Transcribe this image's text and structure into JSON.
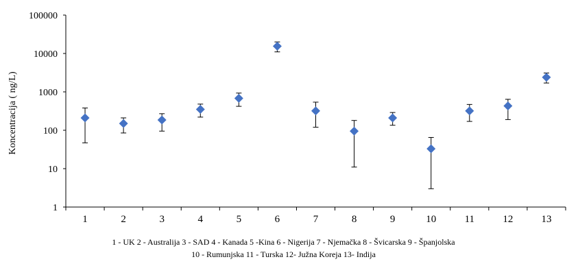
{
  "chart_data": {
    "type": "scatter",
    "title": "",
    "xlabel": "",
    "ylabel": "Koncentracija ( ng/L)",
    "y_scale": "log",
    "ylim": [
      1,
      100000
    ],
    "y_ticks": [
      1,
      10,
      100,
      1000,
      10000,
      100000
    ],
    "y_tick_labels": [
      "1",
      "10",
      "100",
      "1000",
      "10000",
      "100000"
    ],
    "categories": [
      "1",
      "2",
      "3",
      "4",
      "5",
      "6",
      "7",
      "8",
      "9",
      "10",
      "11",
      "12",
      "13"
    ],
    "series": [
      {
        "values": [
          210,
          150,
          185,
          350,
          680,
          15500,
          320,
          95,
          210,
          33,
          320,
          430,
          2400
        ],
        "err_low": [
          47,
          85,
          95,
          220,
          420,
          11000,
          120,
          11,
          135,
          3,
          170,
          190,
          1700
        ],
        "err_high": [
          380,
          210,
          270,
          480,
          930,
          20000,
          540,
          180,
          290,
          65,
          470,
          640,
          3100
        ],
        "color": "#4472c4",
        "marker": "diamond"
      }
    ],
    "error_bar_color": "#000000",
    "grid": false
  },
  "caption": {
    "line1": "1 - UK   2 - Australija  3 - SAD  4 - Kanada  5 -Kina  6 - Nigerija  7 - Njemačka  8 - Švicarska   9 - Španjolska",
    "line2": "10 - Rumunjska 11 - Turska 12- Južna Koreja 13- Indija"
  }
}
